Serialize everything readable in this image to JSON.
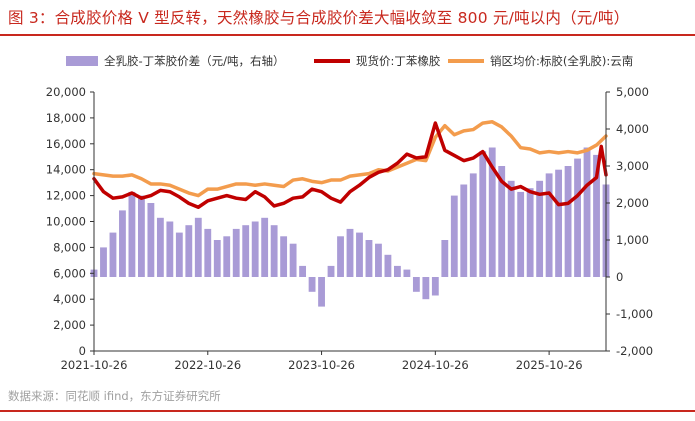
{
  "title": "图 3：合成胶价格 V 型反转，天然橡胶与合成胶价差大幅收敛至 800 元/吨以内（元/吨）",
  "source": "数据来源：同花顺 ifind，东方证券研究所",
  "colors": {
    "spread": "#a99bd6",
    "spot": "#c00000",
    "sales": "#f39c4d",
    "title": "#c8281e",
    "axis": "#333333"
  },
  "chart_data": {
    "type": "line",
    "title": "合成胶价格 V 型反转，天然橡胶与合成胶价差大幅收敛至 800 元/吨以内（元/吨）",
    "x_tick_labels": [
      "2021-10-26",
      "2022-10-26",
      "2023-10-26",
      "2024-10-26",
      "2025-10-26"
    ],
    "x_tick_months": [
      0,
      12,
      24,
      36,
      48
    ],
    "x_range_months": [
      0,
      54
    ],
    "y_left": {
      "min": 0,
      "max": 20000,
      "ticks": [
        0,
        2000,
        4000,
        6000,
        8000,
        10000,
        12000,
        14000,
        16000,
        18000,
        20000
      ],
      "tick_labels": [
        "0",
        "2,000",
        "4,000",
        "6,000",
        "8,000",
        "10,000",
        "12,000",
        "14,000",
        "16,000",
        "18,000",
        "20,000"
      ]
    },
    "y_right": {
      "min": -2000,
      "max": 5000,
      "ticks": [
        -2000,
        -1000,
        0,
        1000,
        2000,
        3000,
        4000,
        5000
      ],
      "tick_labels": [
        "-2,000",
        "-1,000",
        "0",
        "1,000",
        "2,000",
        "3,000",
        "4,000",
        "5,000"
      ]
    },
    "legend": [
      "全乳胶-丁苯胶价差（元/吨，右轴）",
      "现货价:丁苯橡胶",
      "销区均价:标胶(全乳胶):云南"
    ],
    "series": [
      {
        "name": "全乳胶-丁苯胶价差（元/吨，右轴）",
        "type": "bar",
        "axis": "right",
        "x": [
          0,
          1,
          2,
          3,
          4,
          5,
          6,
          7,
          8,
          9,
          10,
          11,
          12,
          13,
          14,
          15,
          16,
          17,
          18,
          19,
          20,
          21,
          22,
          23,
          24,
          25,
          26,
          27,
          28,
          29,
          30,
          31,
          32,
          33,
          34,
          35,
          36,
          37,
          38,
          39,
          40,
          41,
          42,
          43,
          44,
          45,
          46,
          47,
          48,
          49,
          50,
          51,
          52,
          53,
          54
        ],
        "values": [
          200,
          800,
          1200,
          1800,
          2300,
          2200,
          2000,
          1600,
          1500,
          1200,
          1400,
          1600,
          1300,
          1000,
          1100,
          1300,
          1400,
          1500,
          1600,
          1400,
          1100,
          900,
          300,
          -400,
          -800,
          300,
          1100,
          1300,
          1200,
          1000,
          900,
          600,
          300,
          200,
          -400,
          -600,
          -500,
          1000,
          2200,
          2500,
          2800,
          3400,
          3500,
          3000,
          2600,
          2300,
          2400,
          2600,
          2800,
          2900,
          3000,
          3200,
          3500,
          3300,
          2500
        ]
      },
      {
        "name": "现货价:丁苯橡胶",
        "type": "line",
        "axis": "left",
        "x": [
          0,
          0.5,
          1,
          2,
          3,
          4,
          5,
          6,
          7,
          8,
          9,
          10,
          11,
          12,
          13,
          14,
          15,
          16,
          17,
          18,
          19,
          20,
          21,
          22,
          23,
          24,
          25,
          26,
          27,
          28,
          29,
          30,
          31,
          32,
          33,
          34,
          35,
          36,
          37,
          38,
          39,
          40,
          41,
          42,
          43,
          44,
          45,
          46,
          47,
          48,
          49,
          50,
          51,
          52,
          53,
          53.5,
          54
        ],
        "values": [
          13300,
          12800,
          12300,
          11800,
          11900,
          12200,
          11800,
          12000,
          12400,
          12300,
          11900,
          11400,
          11100,
          11600,
          11800,
          12000,
          11800,
          11700,
          12300,
          11900,
          11200,
          11400,
          11800,
          11900,
          12500,
          12300,
          11800,
          11500,
          12300,
          12800,
          13400,
          13800,
          14000,
          14500,
          15200,
          14900,
          15000,
          17600,
          15500,
          15100,
          14700,
          14900,
          15400,
          14200,
          13100,
          12500,
          12700,
          12300,
          12100,
          12200,
          11300,
          11400,
          12000,
          12800,
          13400,
          15800,
          13600
        ]
      },
      {
        "name": "销区均价:标胶(全乳胶):云南",
        "type": "line",
        "axis": "left",
        "x": [
          0,
          1,
          2,
          3,
          4,
          5,
          6,
          7,
          8,
          9,
          10,
          11,
          12,
          13,
          14,
          15,
          16,
          17,
          18,
          19,
          20,
          21,
          22,
          23,
          24,
          25,
          26,
          27,
          28,
          29,
          30,
          31,
          32,
          33,
          34,
          35,
          36,
          37,
          38,
          39,
          40,
          41,
          42,
          43,
          44,
          45,
          46,
          47,
          48,
          49,
          50,
          51,
          52,
          53,
          54
        ],
        "values": [
          13700,
          13600,
          13500,
          13500,
          13600,
          13300,
          12900,
          12900,
          12800,
          12500,
          12200,
          12000,
          12500,
          12500,
          12700,
          12900,
          12900,
          12800,
          12900,
          12800,
          12700,
          13200,
          13300,
          13100,
          13000,
          13200,
          13200,
          13500,
          13600,
          13700,
          14000,
          13900,
          14200,
          14500,
          14800,
          14700,
          16500,
          17400,
          16700,
          17000,
          17100,
          17600,
          17700,
          17300,
          16600,
          15700,
          15600,
          15300,
          15400,
          15300,
          15400,
          15300,
          15500,
          15900,
          16600
        ]
      }
    ]
  }
}
